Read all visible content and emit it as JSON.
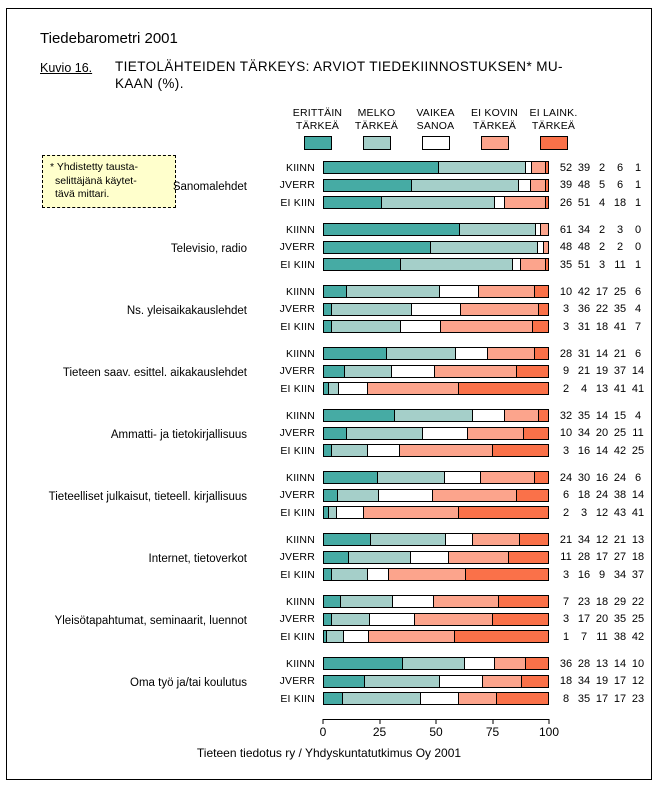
{
  "page": {
    "report_title": "Tiedebarometri 2001",
    "figure_label": "Kuvio 16.",
    "title_line1": "TIETOLÄHTEIDEN TÄRKEYS: ARVIOT TIEDEKIINNOSTUKSEN* MU-",
    "title_line2": "KAAN (%).",
    "footer": "Tieteen tiedotus ry / Yhdyskuntatutkimus Oy 2001"
  },
  "note": {
    "lines": [
      "* Yhdistetty tausta-",
      "selittäjänä käytet-",
      "tävä mittari."
    ],
    "background": "#FFFFCC"
  },
  "chart_data": {
    "type": "bar",
    "stacked": true,
    "orientation": "horizontal",
    "title": "TIETOLÄHTEIDEN TÄRKEYS: ARVIOT TIEDEKIINNOSTUKSEN* MUKAAN (%).",
    "xlim": [
      0,
      100
    ],
    "x_ticks": [
      0,
      25,
      50,
      75,
      100
    ],
    "grid": false,
    "legend_position": "top",
    "legend": [
      {
        "line1": "ERITTÄIN",
        "line2": "TÄRKEÄ",
        "label": "ERITTÄIN TÄRKEÄ",
        "color": "#46ABA4"
      },
      {
        "line1": "MELKO",
        "line2": "TÄRKEÄ",
        "label": "MELKO TÄRKEÄ",
        "color": "#A5CFC9"
      },
      {
        "line1": "VAIKEA",
        "line2": "SANOA",
        "label": "VAIKEA SANOA",
        "color": "#FFFFFF"
      },
      {
        "line1": "EI KOVIN",
        "line2": "TÄRKEÄ",
        "label": "EI KOVIN TÄRKEÄ",
        "color": "#FCA48C"
      },
      {
        "line1": "EI LAINK.",
        "line2": "TÄRKEÄ",
        "label": "EI LAINK. TÄRKEÄ",
        "color": "#FA7149"
      }
    ],
    "row_labels": [
      "KIINN",
      "JVERR",
      "EI KIIN"
    ],
    "groups": [
      {
        "category": "Sanomalehdet",
        "rows": [
          [
            52,
            39,
            2,
            6,
            1
          ],
          [
            39,
            48,
            5,
            6,
            1
          ],
          [
            26,
            51,
            4,
            18,
            1
          ]
        ]
      },
      {
        "category": "Televisio, radio",
        "rows": [
          [
            61,
            34,
            2,
            3,
            0
          ],
          [
            48,
            48,
            2,
            2,
            0
          ],
          [
            35,
            51,
            3,
            11,
            1
          ]
        ]
      },
      {
        "category": "Ns. yleisaikakauslehdet",
        "rows": [
          [
            10,
            42,
            17,
            25,
            6
          ],
          [
            3,
            36,
            22,
            35,
            4
          ],
          [
            3,
            31,
            18,
            41,
            7
          ]
        ]
      },
      {
        "category": "Tieteen saav. esittel. aikakauslehdet",
        "rows": [
          [
            28,
            31,
            14,
            21,
            6
          ],
          [
            9,
            21,
            19,
            37,
            14
          ],
          [
            2,
            4,
            13,
            41,
            41
          ]
        ]
      },
      {
        "category": "Ammatti- ja tietokirjallisuus",
        "rows": [
          [
            32,
            35,
            14,
            15,
            4
          ],
          [
            10,
            34,
            20,
            25,
            11
          ],
          [
            3,
            16,
            14,
            42,
            25
          ]
        ]
      },
      {
        "category": "Tieteelliset julkaisut, tieteell. kirjallisuus",
        "rows": [
          [
            24,
            30,
            16,
            24,
            6
          ],
          [
            6,
            18,
            24,
            38,
            14
          ],
          [
            2,
            3,
            12,
            43,
            41
          ]
        ]
      },
      {
        "category": "Internet, tietoverkot",
        "rows": [
          [
            21,
            34,
            12,
            21,
            13
          ],
          [
            11,
            28,
            17,
            27,
            18
          ],
          [
            3,
            16,
            9,
            34,
            37
          ]
        ]
      },
      {
        "category": "Yleisötapahtumat, seminaarit, luennot",
        "rows": [
          [
            7,
            23,
            18,
            29,
            22
          ],
          [
            3,
            17,
            20,
            35,
            25
          ],
          [
            1,
            7,
            11,
            38,
            42
          ]
        ]
      },
      {
        "category": "Oma työ ja/tai koulutus",
        "rows": [
          [
            36,
            28,
            13,
            14,
            10
          ],
          [
            18,
            34,
            19,
            17,
            12
          ],
          [
            8,
            35,
            17,
            17,
            23
          ]
        ]
      }
    ]
  }
}
